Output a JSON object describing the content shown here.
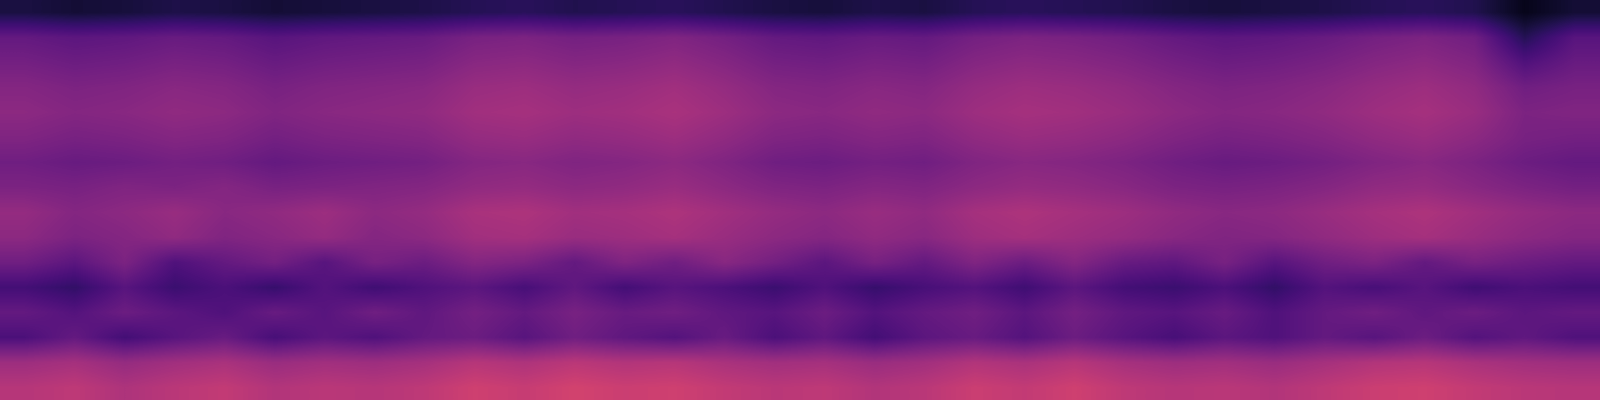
{
  "chart_data": {
    "type": "heatmap",
    "tick_labels": false,
    "color_range": [
      0,
      1
    ],
    "cells": [
      [
        0.12,
        0.1,
        0.11,
        0.13,
        0.12,
        0.1,
        0.11,
        0.12,
        0.13,
        0.15,
        0.16,
        0.14,
        0.15,
        0.16,
        0.14,
        0.12,
        0.11,
        0.13,
        0.12,
        0.15,
        0.16,
        0.15,
        0.14,
        0.12,
        0.11,
        0.12,
        0.13,
        0.15,
        0.16,
        0.14,
        0.05,
        0.1
      ],
      [
        0.3,
        0.28,
        0.29,
        0.31,
        0.3,
        0.27,
        0.29,
        0.3,
        0.31,
        0.35,
        0.36,
        0.34,
        0.35,
        0.37,
        0.34,
        0.3,
        0.29,
        0.31,
        0.3,
        0.34,
        0.36,
        0.35,
        0.33,
        0.3,
        0.28,
        0.29,
        0.31,
        0.34,
        0.36,
        0.33,
        0.15,
        0.27
      ],
      [
        0.34,
        0.32,
        0.33,
        0.35,
        0.34,
        0.31,
        0.33,
        0.34,
        0.35,
        0.39,
        0.4,
        0.38,
        0.39,
        0.41,
        0.38,
        0.34,
        0.33,
        0.35,
        0.34,
        0.38,
        0.4,
        0.39,
        0.37,
        0.34,
        0.32,
        0.33,
        0.35,
        0.38,
        0.4,
        0.37,
        0.25,
        0.31
      ],
      [
        0.38,
        0.36,
        0.37,
        0.39,
        0.38,
        0.35,
        0.37,
        0.38,
        0.39,
        0.43,
        0.44,
        0.42,
        0.43,
        0.45,
        0.42,
        0.38,
        0.37,
        0.39,
        0.38,
        0.42,
        0.44,
        0.43,
        0.41,
        0.38,
        0.36,
        0.37,
        0.39,
        0.42,
        0.44,
        0.41,
        0.33,
        0.35
      ],
      [
        0.4,
        0.38,
        0.39,
        0.41,
        0.4,
        0.37,
        0.39,
        0.4,
        0.41,
        0.45,
        0.46,
        0.44,
        0.45,
        0.47,
        0.44,
        0.4,
        0.39,
        0.41,
        0.4,
        0.44,
        0.46,
        0.45,
        0.43,
        0.4,
        0.38,
        0.39,
        0.41,
        0.44,
        0.46,
        0.43,
        0.36,
        0.37
      ],
      [
        0.37,
        0.35,
        0.36,
        0.38,
        0.37,
        0.34,
        0.36,
        0.37,
        0.38,
        0.42,
        0.43,
        0.41,
        0.42,
        0.44,
        0.41,
        0.37,
        0.36,
        0.38,
        0.37,
        0.41,
        0.43,
        0.42,
        0.4,
        0.37,
        0.35,
        0.36,
        0.38,
        0.41,
        0.43,
        0.4,
        0.35,
        0.34
      ],
      [
        0.33,
        0.31,
        0.32,
        0.34,
        0.33,
        0.3,
        0.32,
        0.33,
        0.34,
        0.38,
        0.39,
        0.37,
        0.38,
        0.4,
        0.37,
        0.33,
        0.32,
        0.34,
        0.33,
        0.37,
        0.39,
        0.38,
        0.36,
        0.33,
        0.31,
        0.32,
        0.34,
        0.37,
        0.39,
        0.36,
        0.32,
        0.3
      ],
      [
        0.36,
        0.35,
        0.37,
        0.36,
        0.38,
        0.35,
        0.36,
        0.37,
        0.38,
        0.41,
        0.42,
        0.4,
        0.41,
        0.43,
        0.4,
        0.37,
        0.36,
        0.38,
        0.37,
        0.4,
        0.42,
        0.41,
        0.39,
        0.36,
        0.35,
        0.36,
        0.38,
        0.41,
        0.42,
        0.39,
        0.36,
        0.34
      ],
      [
        0.42,
        0.38,
        0.4,
        0.43,
        0.39,
        0.41,
        0.44,
        0.4,
        0.42,
        0.47,
        0.48,
        0.45,
        0.46,
        0.48,
        0.45,
        0.42,
        0.4,
        0.43,
        0.41,
        0.46,
        0.48,
        0.46,
        0.44,
        0.41,
        0.39,
        0.4,
        0.43,
        0.46,
        0.48,
        0.45,
        0.42,
        0.4
      ],
      [
        0.4,
        0.36,
        0.38,
        0.41,
        0.37,
        0.39,
        0.42,
        0.38,
        0.4,
        0.45,
        0.46,
        0.43,
        0.44,
        0.46,
        0.43,
        0.4,
        0.38,
        0.41,
        0.39,
        0.44,
        0.46,
        0.44,
        0.42,
        0.39,
        0.37,
        0.38,
        0.41,
        0.44,
        0.46,
        0.43,
        0.4,
        0.38
      ],
      [
        0.33,
        0.28,
        0.36,
        0.25,
        0.3,
        0.34,
        0.27,
        0.35,
        0.32,
        0.38,
        0.36,
        0.3,
        0.37,
        0.33,
        0.39,
        0.34,
        0.28,
        0.35,
        0.3,
        0.37,
        0.32,
        0.38,
        0.31,
        0.29,
        0.35,
        0.27,
        0.33,
        0.36,
        0.3,
        0.35,
        0.32,
        0.3
      ],
      [
        0.22,
        0.18,
        0.27,
        0.2,
        0.24,
        0.19,
        0.26,
        0.21,
        0.25,
        0.28,
        0.23,
        0.29,
        0.22,
        0.27,
        0.24,
        0.2,
        0.25,
        0.19,
        0.23,
        0.26,
        0.21,
        0.28,
        0.22,
        0.2,
        0.24,
        0.18,
        0.26,
        0.23,
        0.27,
        0.21,
        0.24,
        0.22
      ],
      [
        0.3,
        0.26,
        0.32,
        0.28,
        0.25,
        0.31,
        0.27,
        0.33,
        0.29,
        0.34,
        0.3,
        0.35,
        0.31,
        0.33,
        0.29,
        0.27,
        0.32,
        0.26,
        0.3,
        0.33,
        0.28,
        0.34,
        0.29,
        0.27,
        0.31,
        0.25,
        0.3,
        0.33,
        0.29,
        0.32,
        0.28,
        0.3
      ],
      [
        0.24,
        0.3,
        0.22,
        0.27,
        0.31,
        0.23,
        0.28,
        0.25,
        0.3,
        0.32,
        0.27,
        0.33,
        0.29,
        0.26,
        0.31,
        0.24,
        0.29,
        0.22,
        0.28,
        0.31,
        0.26,
        0.32,
        0.27,
        0.23,
        0.28,
        0.25,
        0.3,
        0.27,
        0.32,
        0.26,
        0.29,
        0.25
      ],
      [
        0.44,
        0.46,
        0.42,
        0.45,
        0.47,
        0.43,
        0.45,
        0.44,
        0.46,
        0.5,
        0.48,
        0.51,
        0.49,
        0.5,
        0.47,
        0.45,
        0.46,
        0.43,
        0.45,
        0.49,
        0.47,
        0.5,
        0.46,
        0.44,
        0.45,
        0.43,
        0.46,
        0.49,
        0.5,
        0.47,
        0.45,
        0.44
      ],
      [
        0.5,
        0.52,
        0.48,
        0.51,
        0.53,
        0.49,
        0.51,
        0.5,
        0.52,
        0.56,
        0.54,
        0.57,
        0.55,
        0.56,
        0.53,
        0.51,
        0.52,
        0.49,
        0.51,
        0.55,
        0.53,
        0.56,
        0.52,
        0.5,
        0.51,
        0.49,
        0.52,
        0.55,
        0.56,
        0.53,
        0.51,
        0.5
      ]
    ]
  }
}
